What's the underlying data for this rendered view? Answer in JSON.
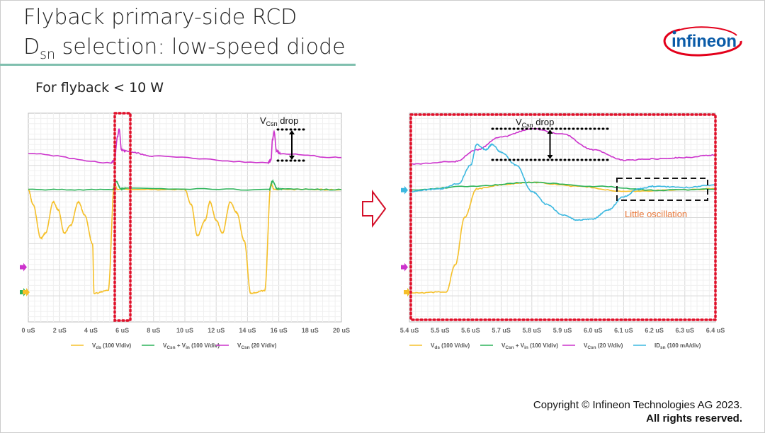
{
  "slide": {
    "title_line1": "Flyback primary-side RCD",
    "title_line2_main": "D",
    "title_line2_sub": "sn",
    "title_line2_rest": " selection: low-speed diode",
    "subtitle": "For flyback < 10 W",
    "logo_text": "infineon",
    "copyright": "Copyright © Infineon Technologies AG 2023.",
    "rights": "All rights reserved."
  },
  "annotations": {
    "vcsn_drop_left": "V",
    "vcsn_sub": "Csn",
    "drop": " drop",
    "little_oscillation": "Little oscillation"
  },
  "chart_data": [
    {
      "type": "line",
      "xlim": [
        0,
        20
      ],
      "ylim_div": [
        0,
        8
      ],
      "xticks": [
        "0 uS",
        "2 uS",
        "4 uS",
        "6 uS",
        "8 uS",
        "10 uS",
        "12 uS",
        "14 uS",
        "16 uS",
        "18 uS",
        "20 uS"
      ],
      "legend": [
        {
          "name": "Vds",
          "sub": "ds",
          "label": "V",
          "rest": " (100 V/div)",
          "color": "#f5c02a"
        },
        {
          "label": "V",
          "sub": "Csn",
          "rest": " + V",
          "sub2": "in",
          "rest2": " (100 V/div)",
          "color": "#2db35a"
        },
        {
          "label": "V",
          "sub": "Csn",
          "rest": " (20 V/div)",
          "color": "#cc33cc"
        }
      ],
      "series": [
        {
          "name": "Vds",
          "color": "#f5c02a",
          "x": [
            0,
            0.3,
            0.8,
            1.1,
            1.6,
            1.9,
            2.3,
            2.7,
            3.2,
            3.6,
            4.1,
            4.2,
            5.1,
            5.5,
            5.7,
            10,
            10.4,
            10.8,
            11.3,
            11.6,
            12,
            12.4,
            12.9,
            13.3,
            13.8,
            14.2,
            15.1,
            15.5,
            15.7,
            20
          ],
          "y": [
            5.07,
            4.5,
            3.2,
            3.4,
            4.6,
            4.3,
            3.4,
            3.7,
            4.6,
            4.1,
            3.0,
            1.1,
            1.2,
            5.3,
            5.08,
            5.07,
            4.5,
            3.3,
            3.9,
            4.6,
            3.9,
            3.4,
            4.6,
            4.2,
            3.1,
            1.1,
            1.2,
            5.3,
            5.08,
            5.07
          ]
        },
        {
          "name": "VCsn+Vin",
          "color": "#2db35a",
          "x": [
            0,
            5.4,
            5.6,
            5.9,
            6.2,
            15.4,
            15.6,
            15.9,
            16.2,
            20
          ],
          "y": [
            5.07,
            5.07,
            5.4,
            5.1,
            5.12,
            5.07,
            5.4,
            5.1,
            5.1,
            5.07
          ]
        },
        {
          "name": "VCsn",
          "color": "#cc33cc",
          "x": [
            0,
            5.3,
            5.5,
            5.7,
            5.8,
            5.95,
            6.2,
            8,
            15.3,
            15.5,
            15.6,
            15.7,
            15.85,
            16.1,
            20
          ],
          "y": [
            6.45,
            6.1,
            6.2,
            7.1,
            7.4,
            6.6,
            6.55,
            6.35,
            6.1,
            6.2,
            7.0,
            7.3,
            6.55,
            6.45,
            6.3
          ]
        }
      ],
      "markers": [
        {
          "color": "#cc33cc",
          "y": 2.1
        },
        {
          "color": "#2db35a",
          "y": 1.14
        },
        {
          "color": "#f5c02a",
          "y": 1.14
        }
      ]
    },
    {
      "type": "line",
      "xlim": [
        5.4,
        6.4
      ],
      "ylim_div": [
        0,
        8
      ],
      "xticks": [
        "5.4 uS",
        "5.5 uS",
        "5.6 uS",
        "5.7 uS",
        "5.8 uS",
        "5.9 uS",
        "6.0 uS",
        "6.1 uS",
        "6.2 uS",
        "6.3 uS",
        "6.4 uS"
      ],
      "legend": [
        {
          "label": "V",
          "sub": "ds",
          "rest": " (100 V/div)",
          "color": "#f5c02a"
        },
        {
          "label": "V",
          "sub": "Csn",
          "rest": " + V",
          "sub2": "in",
          "rest2": " (100 V/div)",
          "color": "#2db35a"
        },
        {
          "label": "V",
          "sub": "Csn",
          "rest": " (20 V/div)",
          "color": "#cc33cc"
        },
        {
          "label": "ID",
          "sub": "sn",
          "rest": " (100 mA/div)",
          "color": "#3bb8e0"
        }
      ],
      "series": [
        {
          "name": "Vds",
          "color": "#f5c02a",
          "x": [
            5.4,
            5.52,
            5.55,
            5.58,
            5.62,
            5.7,
            5.8,
            5.95,
            6.1,
            6.25,
            6.4
          ],
          "y": [
            1.1,
            1.15,
            2.2,
            4.0,
            5.1,
            5.25,
            5.35,
            5.2,
            5.0,
            5.05,
            5.1
          ]
        },
        {
          "name": "VCsn+Vin",
          "color": "#2db35a",
          "x": [
            5.4,
            5.6,
            5.8,
            6.0,
            6.2,
            6.4
          ],
          "y": [
            5.05,
            5.2,
            5.35,
            5.2,
            5.05,
            5.08
          ]
        },
        {
          "name": "VCsn",
          "color": "#cc33cc",
          "x": [
            5.4,
            5.55,
            5.62,
            5.7,
            5.8,
            5.9,
            6.0,
            6.1,
            6.2,
            6.3,
            6.4
          ],
          "y": [
            6.05,
            6.15,
            6.6,
            7.1,
            7.4,
            7.2,
            6.6,
            6.2,
            6.25,
            6.3,
            6.4
          ]
        },
        {
          "name": "IDsn",
          "color": "#3bb8e0",
          "x": [
            5.4,
            5.5,
            5.56,
            5.6,
            5.62,
            5.65,
            5.67,
            5.7,
            5.75,
            5.8,
            5.85,
            5.9,
            5.95,
            6.0,
            6.05,
            6.1,
            6.15,
            6.2,
            6.3,
            6.4
          ],
          "y": [
            5.0,
            5.1,
            5.3,
            6.0,
            6.8,
            6.6,
            6.8,
            6.5,
            6.0,
            5.0,
            4.5,
            4.1,
            3.9,
            3.95,
            4.3,
            4.8,
            5.1,
            5.2,
            5.15,
            5.25
          ]
        }
      ],
      "markers": [
        {
          "color": "#3bb8e0",
          "y": 5.05
        },
        {
          "color": "#cc33cc",
          "y": 2.1
        },
        {
          "color": "#2db35a",
          "y": 1.14
        },
        {
          "color": "#f5c02a",
          "y": 1.14
        }
      ]
    }
  ]
}
